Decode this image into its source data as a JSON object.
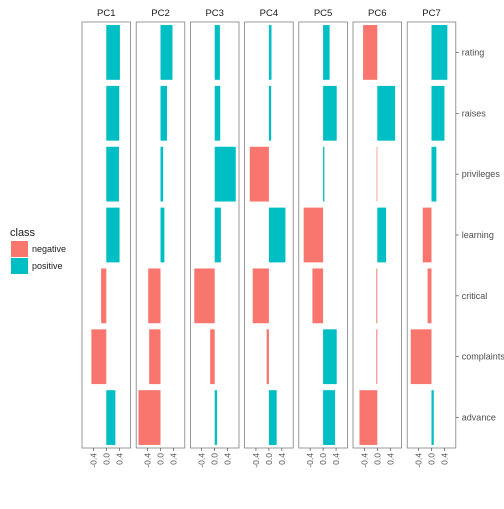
{
  "chart_data": {
    "type": "bar",
    "facets": [
      "PC1",
      "PC2",
      "PC3",
      "PC4",
      "PC5",
      "PC6",
      "PC7"
    ],
    "variables": [
      "rating",
      "raises",
      "privileges",
      "learning",
      "critical",
      "complaints",
      "advance"
    ],
    "xlim": [
      -0.75,
      0.75
    ],
    "x_ticks": [
      -0.4,
      0.0,
      0.4
    ],
    "x_tick_labels": [
      "-0.4",
      "0.0",
      "0.4"
    ],
    "grid": false,
    "legend": {
      "title": "class",
      "position": "left",
      "entries": [
        {
          "label": "negative",
          "color": "#F8766D"
        },
        {
          "label": "positive",
          "color": "#00BFC4"
        }
      ]
    },
    "series": [
      {
        "name": "PC1",
        "values": {
          "rating": 0.42,
          "raises": 0.4,
          "privileges": 0.39,
          "learning": 0.41,
          "critical": -0.16,
          "complaints": -0.46,
          "advance": 0.28
        }
      },
      {
        "name": "PC2",
        "values": {
          "rating": 0.37,
          "raises": 0.2,
          "privileges": 0.08,
          "learning": 0.12,
          "critical": -0.38,
          "complaints": -0.35,
          "advance": -0.68
        }
      },
      {
        "name": "PC3",
        "values": {
          "rating": 0.16,
          "raises": 0.17,
          "privileges": 0.65,
          "learning": 0.19,
          "critical": -0.63,
          "complaints": -0.14,
          "advance": 0.07
        }
      },
      {
        "name": "PC4",
        "values": {
          "rating": 0.08,
          "raises": 0.07,
          "privileges": -0.59,
          "learning": 0.51,
          "critical": -0.5,
          "complaints": -0.07,
          "advance": 0.24
        }
      },
      {
        "name": "PC5",
        "values": {
          "rating": 0.2,
          "raises": 0.42,
          "privileges": 0.04,
          "learning": -0.6,
          "critical": -0.33,
          "complaints": 0.42,
          "advance": 0.37
        }
      },
      {
        "name": "PC6",
        "values": {
          "rating": -0.44,
          "raises": 0.55,
          "privileges": -0.02,
          "learning": 0.27,
          "critical": -0.03,
          "complaints": -0.03,
          "advance": -0.55
        }
      },
      {
        "name": "PC7",
        "values": {
          "rating": 0.49,
          "raises": 0.4,
          "privileges": 0.15,
          "learning": -0.27,
          "critical": -0.12,
          "complaints": -0.64,
          "advance": 0.07
        }
      }
    ]
  }
}
